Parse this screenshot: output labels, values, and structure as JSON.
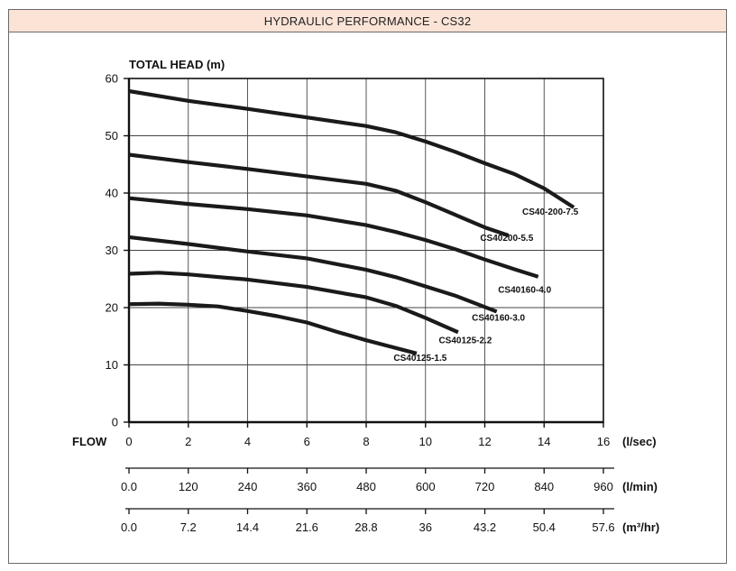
{
  "header": {
    "title": "HYDRAULIC PERFORMANCE - CS32"
  },
  "chart_data": {
    "type": "line",
    "title": "",
    "ylabel": "TOTAL HEAD (m)",
    "xlabel": "FLOW",
    "xlim": [
      0,
      16
    ],
    "ylim": [
      0,
      60
    ],
    "grid": true,
    "y_ticks": [
      "0",
      "10",
      "20",
      "30",
      "40",
      "50",
      "60"
    ],
    "x_ticks": [
      "0",
      "2",
      "4",
      "6",
      "8",
      "10",
      "12",
      "14",
      "16"
    ],
    "x_unit": "(l/sec)",
    "secondary_axes": [
      {
        "unit": "(l/min)",
        "ticks": [
          "0.0",
          "120",
          "240",
          "360",
          "480",
          "600",
          "720",
          "840",
          "960"
        ]
      },
      {
        "unit": "(m³/hr)",
        "ticks": [
          "0.0",
          "7.2",
          "14.4",
          "21.6",
          "28.8",
          "36",
          "43.2",
          "50.4",
          "57.6"
        ]
      }
    ],
    "series": [
      {
        "name": "CS40-200-7.5",
        "x": [
          0,
          2,
          4,
          6,
          8,
          9,
          10,
          11,
          12,
          13,
          14,
          15
        ],
        "y": [
          57.8,
          56.1,
          54.7,
          53.2,
          51.7,
          50.6,
          49.0,
          47.2,
          45.2,
          43.3,
          40.8,
          37.5
        ]
      },
      {
        "name": "CS40200-5.5",
        "x": [
          0,
          2,
          4,
          6,
          8,
          9,
          10,
          11,
          12,
          12.8
        ],
        "y": [
          46.7,
          45.4,
          44.2,
          42.9,
          41.6,
          40.4,
          38.4,
          36.2,
          34.0,
          32.6
        ]
      },
      {
        "name": "CS40160-4.0",
        "x": [
          0,
          2,
          4,
          6,
          8,
          9,
          10,
          11,
          12,
          13,
          13.8
        ],
        "y": [
          39.1,
          38.1,
          37.2,
          36.1,
          34.4,
          33.2,
          31.8,
          30.2,
          28.4,
          26.7,
          25.4
        ]
      },
      {
        "name": "CS40160-3.0",
        "x": [
          0,
          2,
          4,
          6,
          8,
          9,
          10,
          11,
          12.4
        ],
        "y": [
          32.3,
          31.1,
          29.8,
          28.6,
          26.6,
          25.3,
          23.7,
          22.1,
          19.3
        ]
      },
      {
        "name": "CS40125-2.2",
        "x": [
          0,
          1,
          2,
          4,
          6,
          8,
          9,
          10,
          11.1
        ],
        "y": [
          25.9,
          26.1,
          25.8,
          24.9,
          23.6,
          21.8,
          20.3,
          18.2,
          15.7
        ]
      },
      {
        "name": "CS40125-1.5",
        "x": [
          0,
          1,
          2,
          3,
          4,
          5,
          6,
          7,
          8,
          9.7
        ],
        "y": [
          20.6,
          20.7,
          20.5,
          20.2,
          19.4,
          18.5,
          17.4,
          15.8,
          14.3,
          12.0
        ]
      }
    ]
  }
}
